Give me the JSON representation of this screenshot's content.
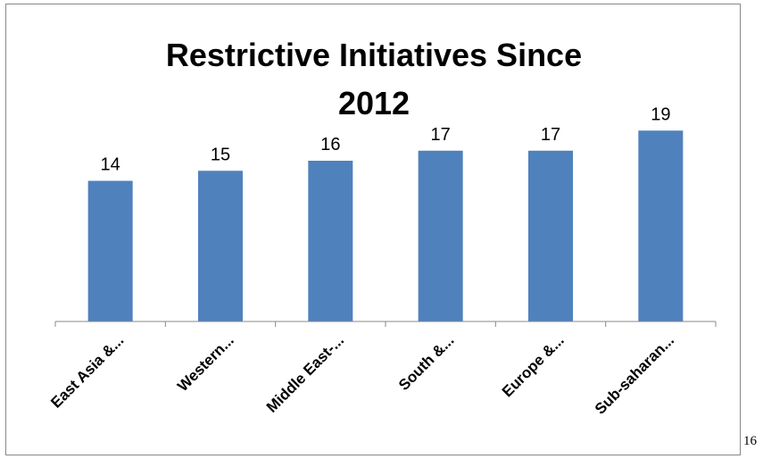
{
  "page_number": "16",
  "chart_data": {
    "type": "bar",
    "title_lines": [
      "Restrictive Initiatives Since",
      "2012"
    ],
    "categories": [
      "East Asia &...",
      "Western...",
      "Middle East-...",
      "South &...",
      "Europe &...",
      "Sub-saharan..."
    ],
    "values": [
      14,
      15,
      16,
      17,
      17,
      19
    ],
    "data_labels": [
      "14",
      "15",
      "16",
      "17",
      "17",
      "19"
    ],
    "xlabel": "",
    "ylabel": "",
    "ylim": [
      0,
      20
    ],
    "grid": false,
    "legend": "none",
    "bar_color": "#4F81BD",
    "axis_color": "#888888"
  }
}
